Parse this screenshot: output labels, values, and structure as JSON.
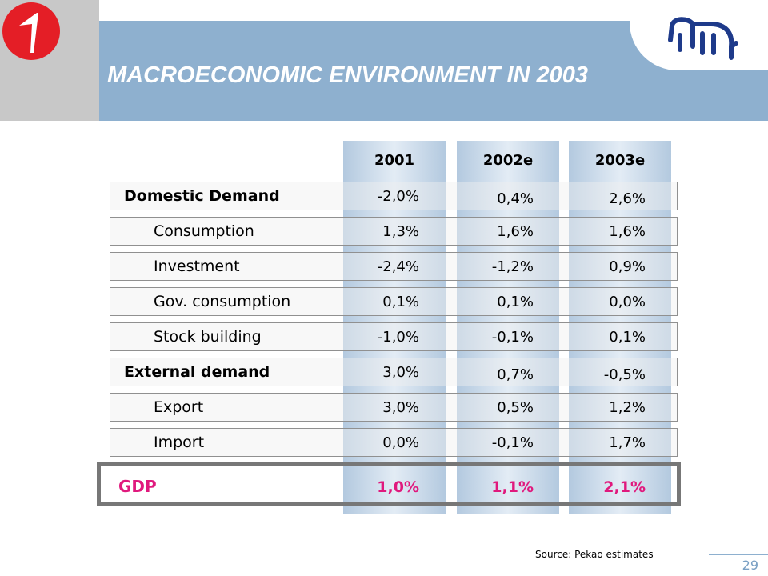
{
  "title": "MACROECONOMIC ENVIRONMENT IN 2003",
  "columns": [
    "2001",
    "2002e",
    "2003e"
  ],
  "rows": [
    {
      "label": "Domestic Demand",
      "type": "main",
      "values": [
        "-2,0%",
        "0,4%",
        "2,6%"
      ]
    },
    {
      "label": "Consumption",
      "type": "sub",
      "values": [
        "1,3%",
        "1,6%",
        "1,6%"
      ]
    },
    {
      "label": "Investment",
      "type": "sub",
      "values": [
        "-2,4%",
        "-1,2%",
        "0,9%"
      ]
    },
    {
      "label": "Gov. consumption",
      "type": "sub",
      "values": [
        "0,1%",
        "0,1%",
        "0,0%"
      ]
    },
    {
      "label": "Stock building",
      "type": "sub",
      "values": [
        "-1,0%",
        "-0,1%",
        "0,1%"
      ]
    },
    {
      "label": "External demand",
      "type": "main",
      "values": [
        "3,0%",
        "0,7%",
        "-0,5%"
      ]
    },
    {
      "label": "Export",
      "type": "sub",
      "values": [
        "3,0%",
        "0,5%",
        "1,2%"
      ]
    },
    {
      "label": "Import",
      "type": "sub",
      "values": [
        "0,0%",
        "-0,1%",
        "1,7%"
      ]
    }
  ],
  "gdp": {
    "label": "GDP",
    "values": [
      "1,0%",
      "1,1%",
      "2,1%"
    ]
  },
  "source": "Source: Pekao estimates",
  "page_number": "29",
  "colors": {
    "accent": "#e0197d",
    "band": "#8eb0cf",
    "logo_red": "#e41e26",
    "logo_bison": "#1e3a8a"
  },
  "icons": {
    "left_logo": "bank-1-logo-icon",
    "right_logo": "bison-logo-icon"
  }
}
